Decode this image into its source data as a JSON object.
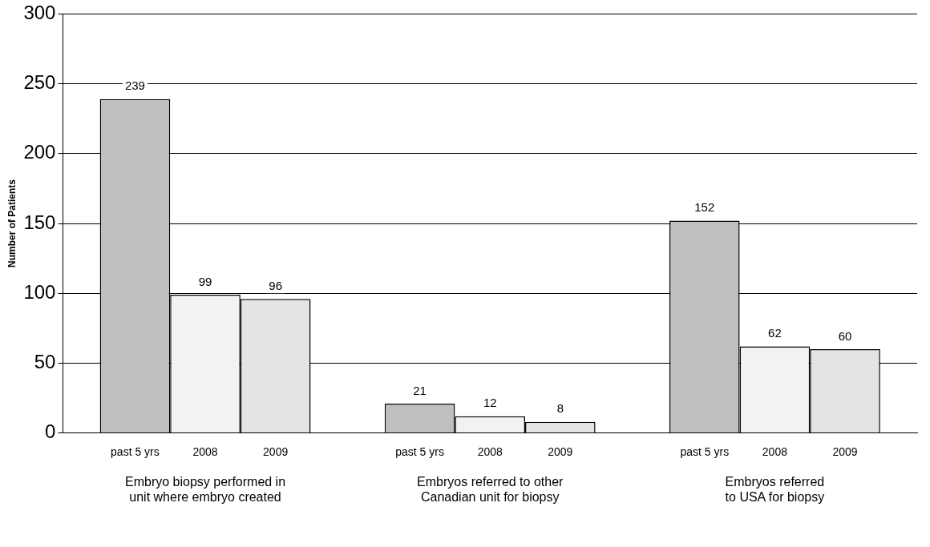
{
  "chart_data": {
    "type": "bar",
    "ylabel": "Number of Patients",
    "categories": [
      "Embryo biopsy performed in unit where embryo created",
      "Embryos referred to other Canadian unit for biopsy",
      "Embryos referred to USA for biopsy"
    ],
    "series": [
      {
        "name": "past 5 yrs",
        "color": "#bfbfbf",
        "values": [
          239,
          21,
          152
        ]
      },
      {
        "name": "2008",
        "color": "#f2f2f2",
        "values": [
          99,
          12,
          62
        ]
      },
      {
        "name": "2009",
        "color": "#e4e4e4",
        "values": [
          96,
          8,
          60
        ]
      }
    ],
    "ylim": [
      0,
      300
    ],
    "yticks": [
      0,
      50,
      100,
      150,
      200,
      250,
      300
    ],
    "grid": "y",
    "legend": false,
    "data_labels": true
  }
}
